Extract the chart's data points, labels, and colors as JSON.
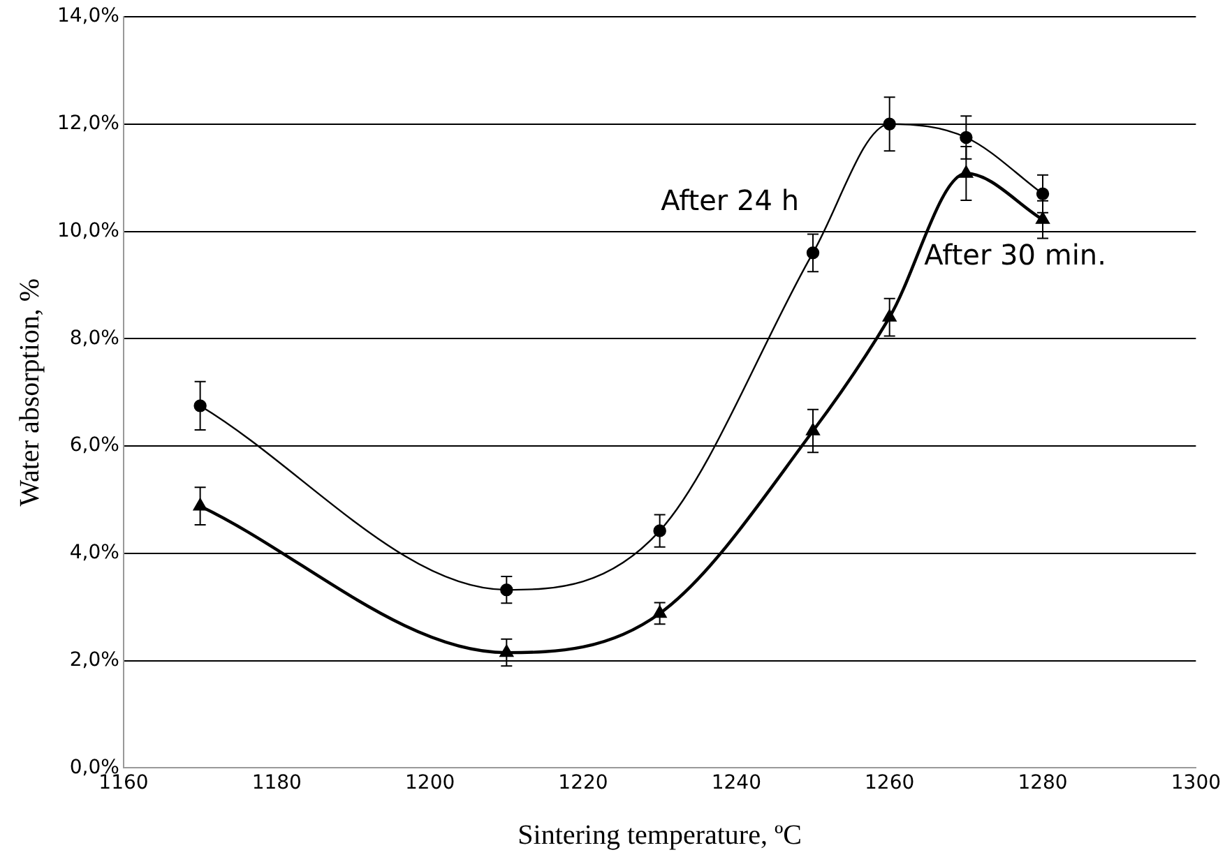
{
  "chart_data": {
    "type": "line",
    "xlabel": "Sintering temperature, ºC",
    "ylabel": "Water absorption, %",
    "x": [
      1170,
      1210,
      1230,
      1250,
      1260,
      1270,
      1280
    ],
    "series": [
      {
        "name": "After 24 h",
        "color": "#000000",
        "marker": "circle",
        "values": [
          6.75,
          3.32,
          4.42,
          9.6,
          12.0,
          11.75,
          10.7
        ],
        "errors": [
          0.45,
          0.25,
          0.3,
          0.35,
          0.5,
          0.4,
          0.35
        ]
      },
      {
        "name": "After 30 min.",
        "color": "#000000",
        "marker": "triangle",
        "values": [
          4.88,
          2.15,
          2.88,
          6.28,
          8.4,
          11.08,
          10.22
        ],
        "errors": [
          0.35,
          0.25,
          0.2,
          0.4,
          0.35,
          0.5,
          0.35
        ]
      }
    ],
    "xlim": [
      1160,
      1300
    ],
    "xticks": [
      1160,
      1180,
      1200,
      1220,
      1240,
      1260,
      1280,
      1300
    ],
    "ylim": [
      0,
      14
    ],
    "yticks": [
      {
        "value": 0,
        "label": "0,0%"
      },
      {
        "value": 2,
        "label": "2,0%"
      },
      {
        "value": 4,
        "label": "4,0%"
      },
      {
        "value": 6,
        "label": "6,0%"
      },
      {
        "value": 8,
        "label": "8,0%"
      },
      {
        "value": 10,
        "label": "10,0%"
      },
      {
        "value": 12,
        "label": "12,0%"
      },
      {
        "value": 14,
        "label": "14,0%"
      }
    ],
    "grid": "y",
    "legend": false
  }
}
